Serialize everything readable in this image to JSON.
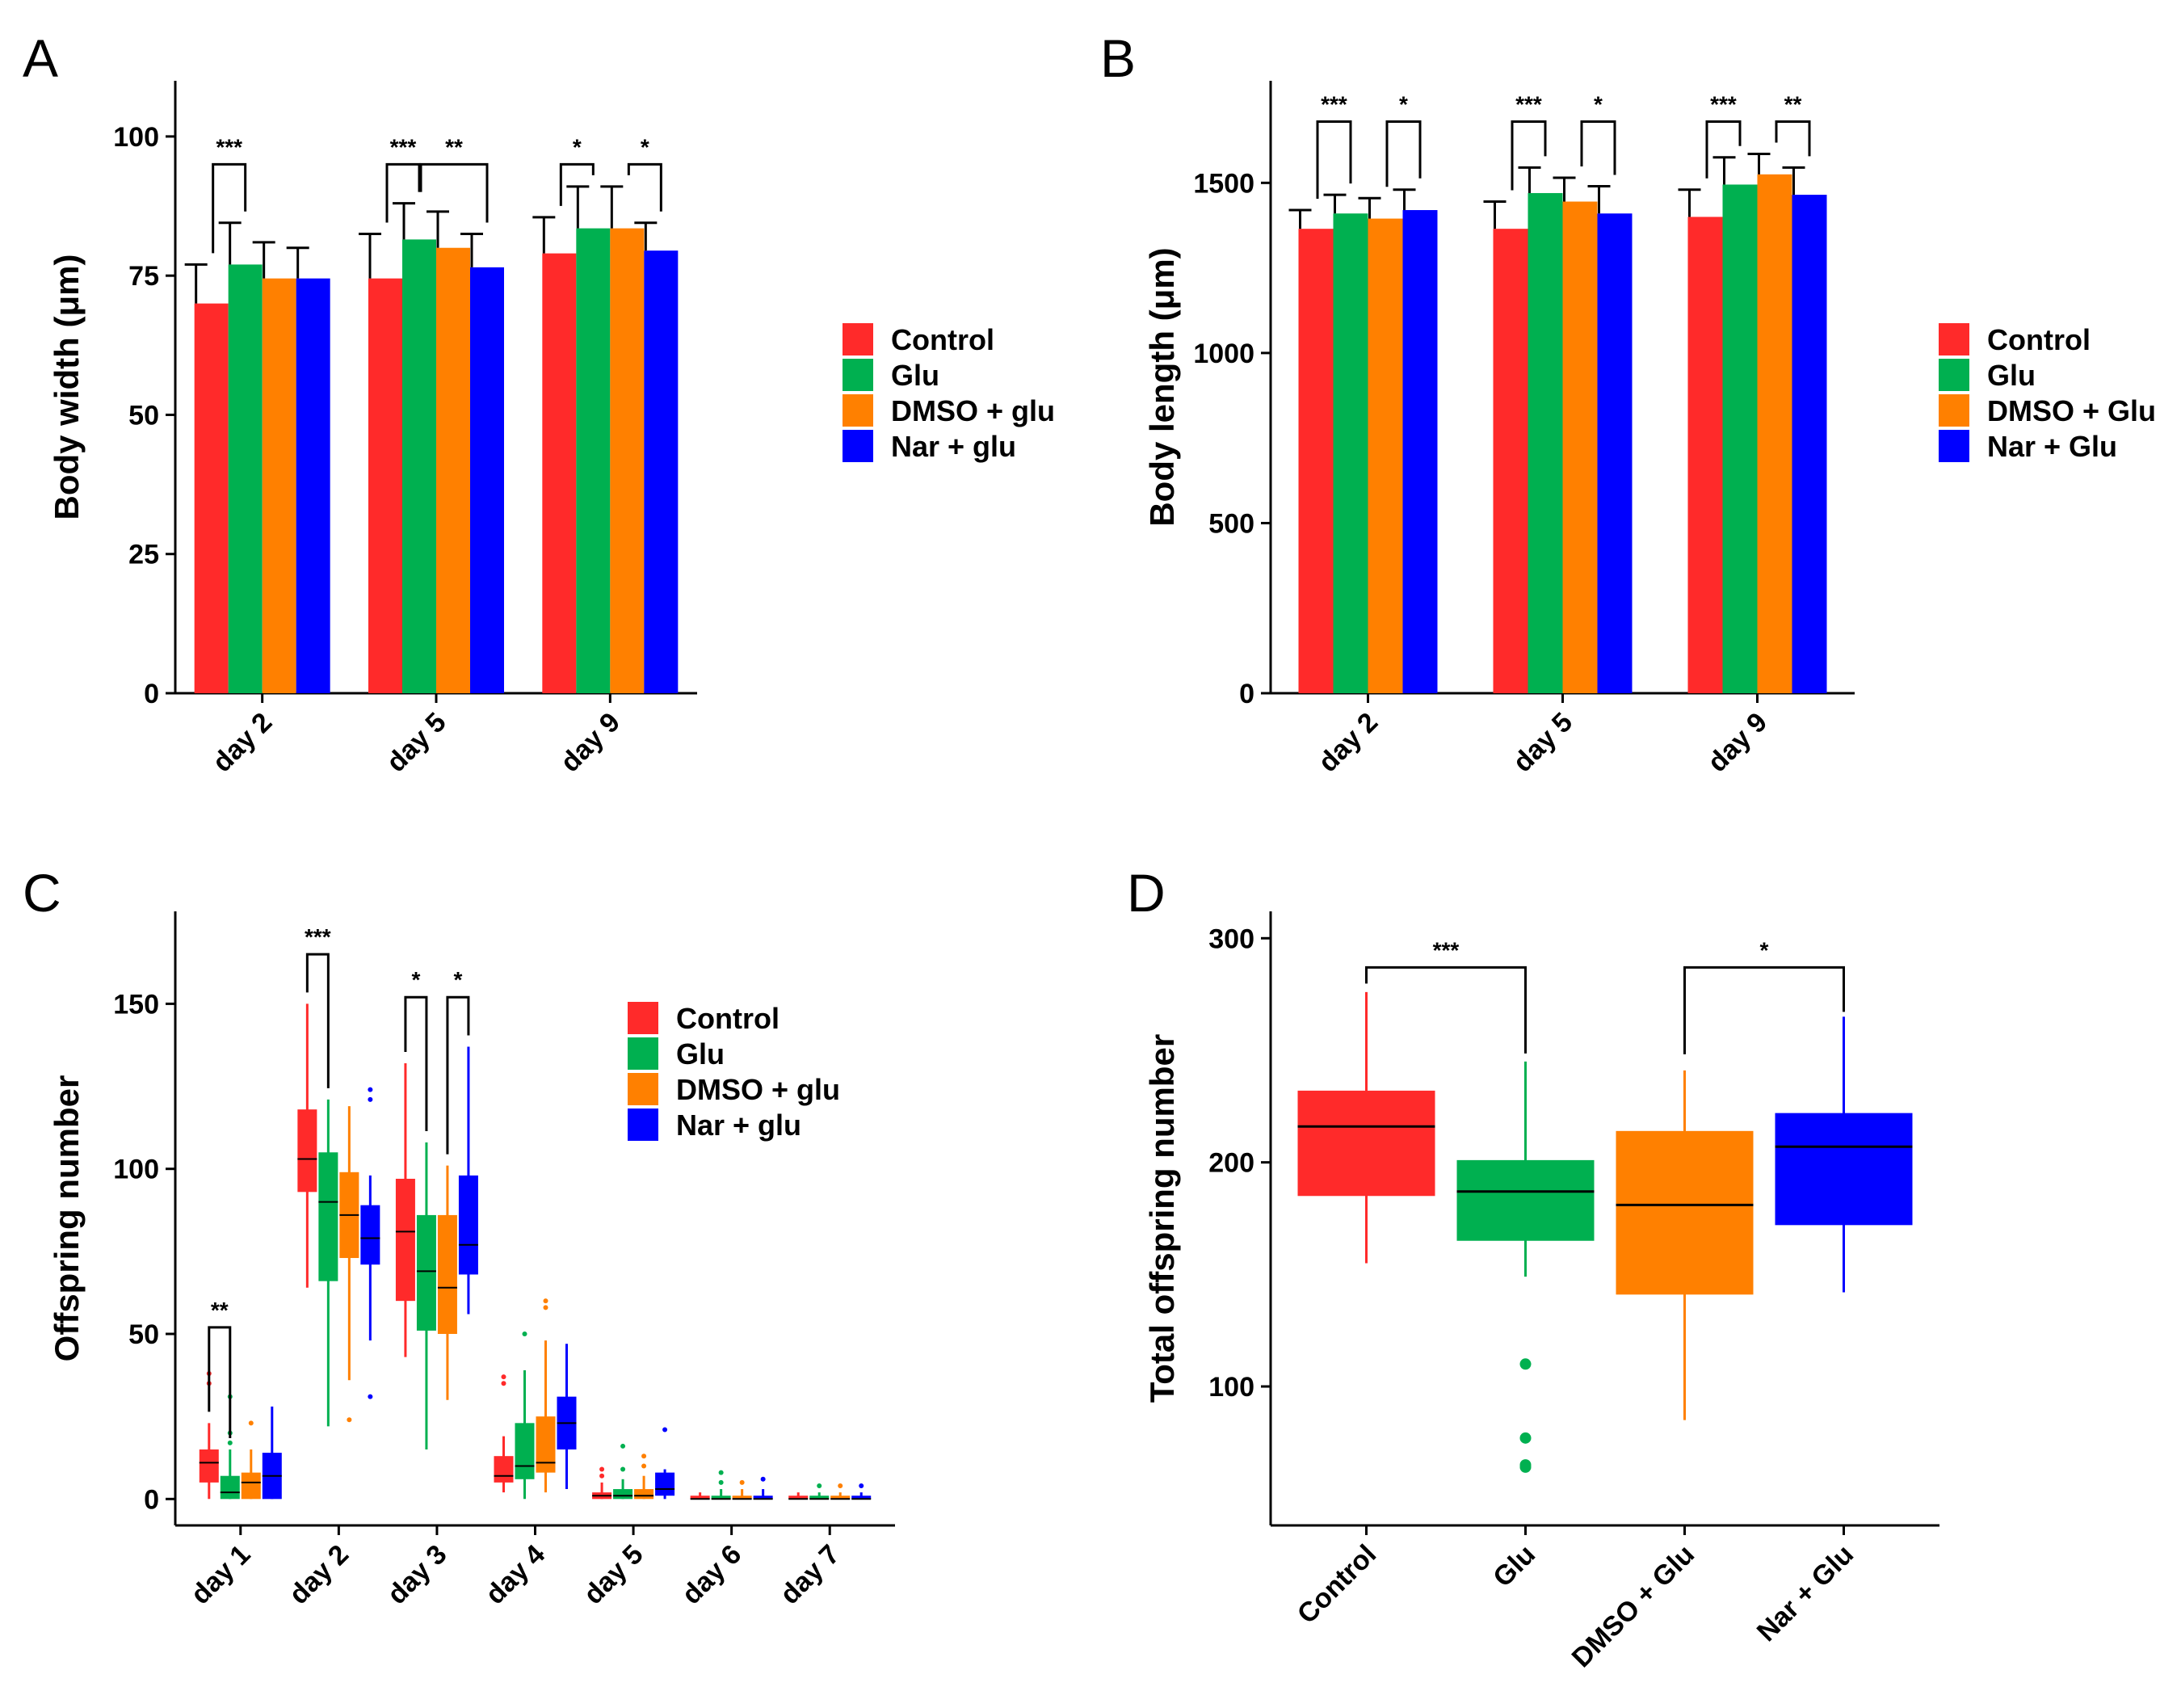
{
  "colors": {
    "control": "#ff2a2a",
    "glu": "#00b050",
    "dmso": "#ff8000",
    "nar": "#0000ff"
  },
  "chart_data": [
    {
      "panel": "A",
      "type": "bar",
      "ylabel": "Body width (μm)",
      "ylim": [
        0,
        110
      ],
      "yticks": [
        "0",
        "25",
        "50",
        "75",
        "100"
      ],
      "categories": [
        "day 2",
        "day 5",
        "day 9"
      ],
      "legend": [
        "Control",
        "Glu",
        "DMSO + glu",
        "Nar + glu"
      ],
      "series": [
        {
          "name": "Control",
          "values": [
            70,
            74.5,
            79
          ],
          "err": [
            77,
            82.5,
            85.5
          ]
        },
        {
          "name": "Glu",
          "values": [
            77,
            81.5,
            83.5
          ],
          "err": [
            84.5,
            88,
            91
          ]
        },
        {
          "name": "DMSO + glu",
          "values": [
            74.5,
            80,
            83.5
          ],
          "err": [
            81,
            86.5,
            91
          ]
        },
        {
          "name": "Nar + glu",
          "values": [
            74.5,
            76.5,
            79.5
          ],
          "err": [
            80,
            82.5,
            84.5
          ]
        }
      ],
      "significance": [
        {
          "label": "***",
          "group": 0,
          "from": 0,
          "to": 1,
          "y": 95
        },
        {
          "label": "***",
          "group": 1,
          "from": 0,
          "to": 1,
          "y": 95
        },
        {
          "label": "**",
          "group": 1,
          "from": 1,
          "to": 3,
          "y": 95
        },
        {
          "label": "*",
          "group": 2,
          "from": 0,
          "to": 1,
          "y": 95
        },
        {
          "label": "*",
          "group": 2,
          "from": 2,
          "to": 3,
          "y": 95
        }
      ]
    },
    {
      "panel": "B",
      "type": "bar",
      "ylabel": "Body length (μm)",
      "ylim": [
        0,
        1800
      ],
      "yticks": [
        "0",
        "500",
        "1000",
        "1500"
      ],
      "categories": [
        "day 2",
        "day 5",
        "day 9"
      ],
      "legend": [
        "Control",
        "Glu",
        "DMSO + Glu",
        "Nar + Glu"
      ],
      "series": [
        {
          "name": "Control",
          "values": [
            1365,
            1365,
            1400
          ],
          "err": [
            1420,
            1445,
            1480
          ]
        },
        {
          "name": "Glu",
          "values": [
            1410,
            1470,
            1495
          ],
          "err": [
            1465,
            1545,
            1575
          ]
        },
        {
          "name": "DMSO + Glu",
          "values": [
            1395,
            1445,
            1525
          ],
          "err": [
            1455,
            1515,
            1585
          ]
        },
        {
          "name": "Nar + Glu",
          "values": [
            1420,
            1410,
            1465
          ],
          "err": [
            1480,
            1490,
            1545
          ]
        }
      ],
      "significance": [
        {
          "label": "***",
          "group": 0,
          "from": 0,
          "to": 1,
          "y": 1680
        },
        {
          "label": "*",
          "group": 0,
          "from": 2,
          "to": 3,
          "y": 1680
        },
        {
          "label": "***",
          "group": 1,
          "from": 0,
          "to": 1,
          "y": 1680
        },
        {
          "label": "*",
          "group": 1,
          "from": 2,
          "to": 3,
          "y": 1680
        },
        {
          "label": "***",
          "group": 2,
          "from": 0,
          "to": 1,
          "y": 1680
        },
        {
          "label": "**",
          "group": 2,
          "from": 2,
          "to": 3,
          "y": 1680
        }
      ]
    },
    {
      "panel": "C",
      "type": "box",
      "ylabel": "Offspring number",
      "ylim": [
        -8,
        178
      ],
      "yticks": [
        "0",
        "50",
        "100",
        "150"
      ],
      "categories": [
        "day 1",
        "day 2",
        "day 3",
        "day 4",
        "day 5",
        "day 6",
        "day 7"
      ],
      "legend": [
        "Control",
        "Glu",
        "DMSO + glu",
        "Nar + glu"
      ],
      "series": [
        {
          "name": "Control",
          "boxes": [
            [
              0,
              5,
              11,
              15,
              23
            ],
            [
              64,
              93,
              103,
              118,
              150
            ],
            [
              43,
              60,
              81,
              97,
              132
            ],
            [
              2,
              5,
              7,
              13,
              19
            ],
            [
              0,
              0,
              1,
              2,
              5
            ],
            [
              0,
              0,
              0,
              1,
              2
            ],
            [
              0,
              0,
              0,
              1,
              2
            ]
          ],
          "outliers": [
            [
              35,
              38
            ],
            [],
            [],
            [
              35,
              37
            ],
            [
              7,
              9
            ],
            [],
            []
          ]
        },
        {
          "name": "Glu",
          "boxes": [
            [
              0,
              0,
              2,
              7,
              15
            ],
            [
              22,
              66,
              90,
              105,
              121
            ],
            [
              15,
              51,
              69,
              86,
              108
            ],
            [
              0,
              6,
              10,
              23,
              39
            ],
            [
              0,
              0,
              1,
              3,
              6
            ],
            [
              0,
              0,
              0,
              1,
              3
            ],
            [
              0,
              0,
              0,
              1,
              2
            ]
          ],
          "outliers": [
            [
              17,
              20,
              31
            ],
            [],
            [],
            [
              50
            ],
            [
              9,
              16
            ],
            [
              5,
              8
            ],
            [
              4
            ]
          ]
        },
        {
          "name": "DMSO + glu",
          "boxes": [
            [
              0,
              0,
              5,
              8,
              15
            ],
            [
              36,
              73,
              86,
              99,
              119
            ],
            [
              30,
              50,
              64,
              86,
              101
            ],
            [
              2,
              8,
              11,
              25,
              48
            ],
            [
              0,
              0,
              1,
              3,
              7
            ],
            [
              0,
              0,
              0,
              1,
              3
            ],
            [
              0,
              0,
              0,
              1,
              2
            ]
          ],
          "outliers": [
            [
              23
            ],
            [
              24
            ],
            [],
            [
              58,
              60
            ],
            [
              10,
              13
            ],
            [
              5
            ],
            [
              4
            ]
          ]
        },
        {
          "name": "Nar + glu",
          "boxes": [
            [
              0,
              0,
              7,
              14,
              28
            ],
            [
              48,
              71,
              79,
              89,
              98
            ],
            [
              56,
              68,
              77,
              98,
              137
            ],
            [
              3,
              15,
              23,
              31,
              47
            ],
            [
              0,
              1,
              3,
              8,
              9
            ],
            [
              0,
              0,
              0,
              1,
              3
            ],
            [
              0,
              0,
              0,
              1,
              2
            ]
          ],
          "outliers": [
            [],
            [
              31,
              121,
              124
            ],
            [],
            [],
            [
              21
            ],
            [
              6
            ],
            [
              4
            ]
          ]
        }
      ],
      "significance": [
        {
          "label": "**",
          "group": 0,
          "from": 0,
          "to": 1,
          "y": 52
        },
        {
          "label": "***",
          "group": 1,
          "from": 0,
          "to": 1,
          "y": 165
        },
        {
          "label": "*",
          "group": 2,
          "from": 0,
          "to": 1,
          "y": 152
        },
        {
          "label": "*",
          "group": 2,
          "from": 2,
          "to": 3,
          "y": 152
        }
      ]
    },
    {
      "panel": "D",
      "type": "box",
      "ylabel": "Total offspring number",
      "ylim": [
        38,
        312
      ],
      "yticks": [
        "100",
        "200",
        "300"
      ],
      "categories": [
        "Control",
        "Glu",
        "DMSO + Glu",
        "Nar + Glu"
      ],
      "series": [
        {
          "name": "Control",
          "box": [
            155,
            185,
            216,
            232,
            276
          ],
          "outliers": []
        },
        {
          "name": "Glu",
          "box": [
            149,
            165,
            187,
            201,
            245
          ],
          "outliers": [
            64,
            65,
            77,
            110
          ]
        },
        {
          "name": "DMSO + Glu",
          "box": [
            85,
            141,
            181,
            214,
            241
          ],
          "outliers": []
        },
        {
          "name": "Nar + Glu",
          "box": [
            142,
            172,
            207,
            222,
            265
          ],
          "outliers": []
        }
      ],
      "significance": [
        {
          "label": "***",
          "from": 0,
          "to": 1,
          "y": 287
        },
        {
          "label": "*",
          "from": 2,
          "to": 3,
          "y": 287
        }
      ]
    }
  ]
}
